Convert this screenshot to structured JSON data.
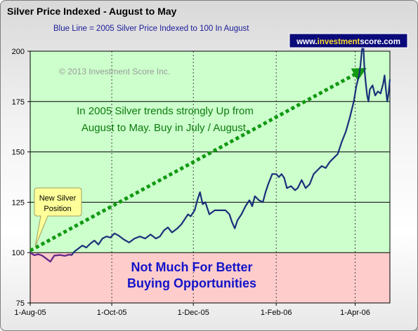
{
  "chart_data": {
    "type": "line",
    "title": "Silver Price Indexed - August to May",
    "subtitle": "Blue Line =  2005 Silver Price Indexed to 100 In August",
    "badge": {
      "prefix": "www.",
      "highlight": "investment",
      "suffix": "score.com"
    },
    "copyright": "© 2013 Investment Score Inc.",
    "annotation_top": [
      "In 2005 Silver trends strongly Up from",
      "August to May.  Buy in July / August."
    ],
    "annotation_bottom": [
      "Not Much For Better",
      "Buying Opportunities"
    ],
    "callout": [
      "New Silver",
      "Position"
    ],
    "y_ticks": [
      75,
      100,
      125,
      150,
      175,
      200
    ],
    "ylim": [
      75,
      200
    ],
    "x_ticks": [
      {
        "label": "1-Aug-05",
        "day": 0
      },
      {
        "label": "1-Oct-05",
        "day": 61
      },
      {
        "label": "1-Dec-05",
        "day": 122
      },
      {
        "label": "1-Feb-06",
        "day": 184
      },
      {
        "label": "1-Apr-06",
        "day": 243
      }
    ],
    "xlim_days": [
      0,
      269
    ],
    "green_zone": [
      100,
      200
    ],
    "red_zone": [
      75,
      100
    ],
    "gridlines": [
      125,
      150,
      175
    ],
    "trend": {
      "from": [
        0,
        101
      ],
      "to": [
        247,
        190
      ]
    },
    "series": [
      {
        "color": "#1a2f7a",
        "start_date": "2005-08-01",
        "points": [
          [
            0,
            100
          ],
          [
            3,
            98.7
          ],
          [
            6,
            99.2
          ],
          [
            9,
            98.5
          ],
          [
            12,
            97
          ],
          [
            15,
            95.5
          ],
          [
            18,
            98.5
          ],
          [
            22,
            98.8
          ],
          [
            26,
            98.4
          ],
          [
            29,
            99
          ],
          [
            31,
            98.8
          ],
          [
            33,
            100.5
          ],
          [
            36,
            102
          ],
          [
            39,
            103.5
          ],
          [
            42,
            102.5
          ],
          [
            45,
            104.5
          ],
          [
            48,
            106
          ],
          [
            51,
            104
          ],
          [
            54,
            107
          ],
          [
            57,
            108
          ],
          [
            60,
            107.5
          ],
          [
            63,
            109.5
          ],
          [
            66,
            108.5
          ],
          [
            70,
            106.5
          ],
          [
            74,
            105
          ],
          [
            78,
            107
          ],
          [
            82,
            108
          ],
          [
            86,
            107
          ],
          [
            90,
            109
          ],
          [
            94,
            107
          ],
          [
            97,
            108
          ],
          [
            100,
            111
          ],
          [
            103,
            112.5
          ],
          [
            106,
            110
          ],
          [
            110,
            112
          ],
          [
            113,
            114
          ],
          [
            116,
            117
          ],
          [
            118,
            119
          ],
          [
            120,
            118
          ],
          [
            123,
            121
          ],
          [
            125,
            126
          ],
          [
            127,
            130
          ],
          [
            129,
            124
          ],
          [
            131,
            125
          ],
          [
            134,
            119
          ],
          [
            138,
            121
          ],
          [
            142,
            121
          ],
          [
            146,
            121
          ],
          [
            149,
            119
          ],
          [
            151,
            115
          ],
          [
            153,
            112
          ],
          [
            155,
            116
          ],
          [
            158,
            119
          ],
          [
            161,
            123
          ],
          [
            164,
            126
          ],
          [
            166,
            123
          ],
          [
            168,
            128
          ],
          [
            171,
            126
          ],
          [
            174,
            125
          ],
          [
            176,
            130
          ],
          [
            178,
            134
          ],
          [
            181,
            139
          ],
          [
            184,
            139
          ],
          [
            186,
            137.5
          ],
          [
            188,
            139
          ],
          [
            190,
            137
          ],
          [
            192,
            132
          ],
          [
            195,
            133
          ],
          [
            198,
            131
          ],
          [
            200,
            132
          ],
          [
            203,
            136
          ],
          [
            206,
            132
          ],
          [
            209,
            134
          ],
          [
            212,
            139
          ],
          [
            215,
            141
          ],
          [
            218,
            143
          ],
          [
            221,
            142
          ],
          [
            224,
            145
          ],
          [
            227,
            147
          ],
          [
            230,
            149
          ],
          [
            233,
            155
          ],
          [
            236,
            160
          ],
          [
            239,
            167
          ],
          [
            242,
            175
          ],
          [
            244,
            183
          ],
          [
            246,
            188
          ],
          [
            247,
            193
          ],
          [
            248,
            200
          ],
          [
            249,
            205
          ],
          [
            250,
            191
          ],
          [
            251,
            184
          ],
          [
            252,
            178
          ],
          [
            253,
            175
          ],
          [
            254,
            181
          ],
          [
            256,
            183
          ],
          [
            258,
            178
          ],
          [
            260,
            180
          ],
          [
            262,
            179
          ],
          [
            264,
            184
          ],
          [
            265,
            188
          ],
          [
            266,
            181
          ],
          [
            267,
            175
          ],
          [
            268,
            179
          ],
          [
            269,
            186
          ]
        ]
      }
    ]
  },
  "colors": {
    "green_zone": "#ccffcc",
    "red_zone": "#ffcccc",
    "trend": "#119911",
    "series": "#1a2f7a",
    "early_series": "#6a2a8a",
    "annotation_top": "#0d7a0d",
    "annotation_bottom": "#1313c8",
    "badge_bg": "#0a0a7a",
    "callout_bg": "#ffff99"
  }
}
